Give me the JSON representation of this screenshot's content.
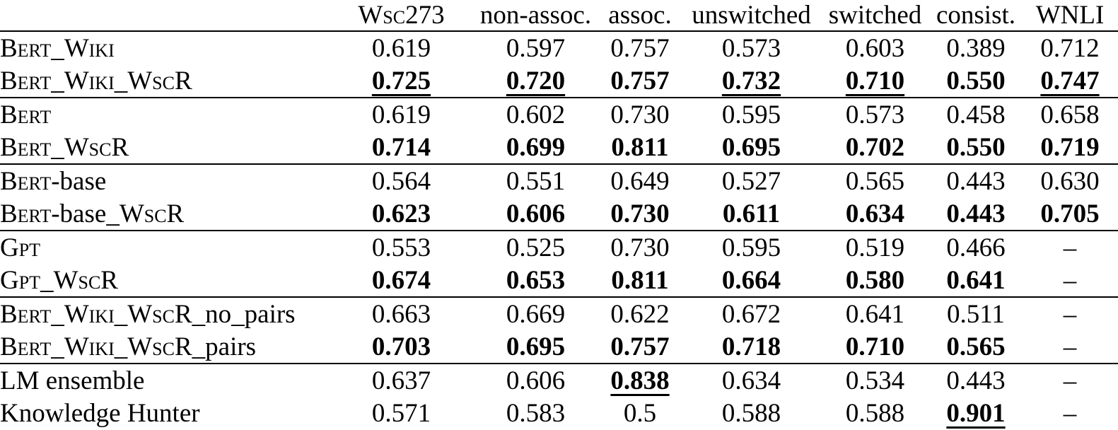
{
  "page": {
    "background": "#ffffff",
    "text_color": "#000000",
    "rule_color": "#000000"
  },
  "table": {
    "corner_label": "",
    "columns": [
      {
        "label": "Wsc273",
        "smallcaps": true
      },
      {
        "label": "non-assoc.",
        "smallcaps": false
      },
      {
        "label": "assoc.",
        "smallcaps": false
      },
      {
        "label": "unswitched",
        "smallcaps": false
      },
      {
        "label": "switched",
        "smallcaps": false
      },
      {
        "label": "consist.",
        "smallcaps": false
      },
      {
        "label": "WNLI",
        "smallcaps": false
      }
    ],
    "groups": [
      {
        "rows": [
          {
            "label_parts": [
              {
                "text": "Bert_Wiki",
                "sc": true
              }
            ],
            "values": [
              "0.619",
              "0.597",
              "0.757",
              "0.573",
              "0.603",
              "0.389",
              "0.712"
            ],
            "styles": [
              "",
              "",
              "",
              "",
              "",
              "",
              ""
            ]
          },
          {
            "label_parts": [
              {
                "text": "Bert_Wiki_WscR",
                "sc": true
              }
            ],
            "values": [
              "0.725",
              "0.720",
              "0.757",
              "0.732",
              "0.710",
              "0.550",
              "0.747"
            ],
            "styles": [
              "bu",
              "bu",
              "b",
              "bu",
              "bu",
              "b",
              "bu"
            ]
          }
        ]
      },
      {
        "rows": [
          {
            "label_parts": [
              {
                "text": "Bert",
                "sc": true
              }
            ],
            "values": [
              "0.619",
              "0.602",
              "0.730",
              "0.595",
              "0.573",
              "0.458",
              "0.658"
            ],
            "styles": [
              "",
              "",
              "",
              "",
              "",
              "",
              ""
            ]
          },
          {
            "label_parts": [
              {
                "text": "Bert_WscR",
                "sc": true
              }
            ],
            "values": [
              "0.714",
              "0.699",
              "0.811",
              "0.695",
              "0.702",
              "0.550",
              "0.719"
            ],
            "styles": [
              "b",
              "b",
              "b",
              "b",
              "b",
              "b",
              "b"
            ]
          }
        ]
      },
      {
        "rows": [
          {
            "label_parts": [
              {
                "text": "Bert",
                "sc": true
              },
              {
                "text": "-base",
                "sc": false
              }
            ],
            "values": [
              "0.564",
              "0.551",
              "0.649",
              "0.527",
              "0.565",
              "0.443",
              "0.630"
            ],
            "styles": [
              "",
              "",
              "",
              "",
              "",
              "",
              ""
            ]
          },
          {
            "label_parts": [
              {
                "text": "Bert",
                "sc": true
              },
              {
                "text": "-base",
                "sc": false
              },
              {
                "text": "_WscR",
                "sc": true
              }
            ],
            "values": [
              "0.623",
              "0.606",
              "0.730",
              "0.611",
              "0.634",
              "0.443",
              "0.705"
            ],
            "styles": [
              "b",
              "b",
              "b",
              "b",
              "b",
              "b",
              "b"
            ]
          }
        ]
      },
      {
        "rows": [
          {
            "label_parts": [
              {
                "text": "Gpt",
                "sc": true
              }
            ],
            "values": [
              "0.553",
              "0.525",
              "0.730",
              "0.595",
              "0.519",
              "0.466",
              "–"
            ],
            "styles": [
              "",
              "",
              "",
              "",
              "",
              "",
              ""
            ]
          },
          {
            "label_parts": [
              {
                "text": "Gpt_WscR",
                "sc": true
              }
            ],
            "values": [
              "0.674",
              "0.653",
              "0.811",
              "0.664",
              "0.580",
              "0.641",
              "–"
            ],
            "styles": [
              "b",
              "b",
              "b",
              "b",
              "b",
              "b",
              ""
            ]
          }
        ]
      },
      {
        "rows": [
          {
            "label_parts": [
              {
                "text": "Bert_Wiki_WscR",
                "sc": true
              },
              {
                "text": "_no_pairs",
                "sc": false
              }
            ],
            "values": [
              "0.663",
              "0.669",
              "0.622",
              "0.672",
              "0.641",
              "0.511",
              "–"
            ],
            "styles": [
              "",
              "",
              "",
              "",
              "",
              "",
              ""
            ]
          },
          {
            "label_parts": [
              {
                "text": "Bert_Wiki_WscR",
                "sc": true
              },
              {
                "text": "_pairs",
                "sc": false
              }
            ],
            "values": [
              "0.703",
              "0.695",
              "0.757",
              "0.718",
              "0.710",
              "0.565",
              "–"
            ],
            "styles": [
              "b",
              "b",
              "b",
              "b",
              "b",
              "b",
              ""
            ]
          }
        ]
      },
      {
        "rows": [
          {
            "label_parts": [
              {
                "text": "LM ensemble",
                "sc": false
              }
            ],
            "values": [
              "0.637",
              "0.606",
              "0.838",
              "0.634",
              "0.534",
              "0.443",
              "–"
            ],
            "styles": [
              "",
              "",
              "bu",
              "",
              "",
              "",
              ""
            ]
          },
          {
            "label_parts": [
              {
                "text": "Knowledge Hunter",
                "sc": false
              }
            ],
            "values": [
              "0.571",
              "0.583",
              "0.5",
              "0.588",
              "0.588",
              "0.901",
              "–"
            ],
            "styles": [
              "",
              "",
              "",
              "",
              "",
              "bu",
              ""
            ]
          }
        ]
      }
    ]
  }
}
